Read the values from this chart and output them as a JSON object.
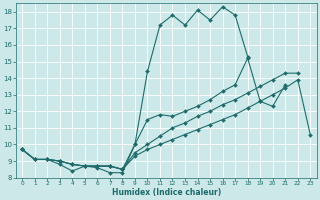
{
  "xlabel": "Humidex (Indice chaleur)",
  "xlim": [
    -0.5,
    23.5
  ],
  "ylim": [
    8,
    18.5
  ],
  "yticks": [
    8,
    9,
    10,
    11,
    12,
    13,
    14,
    15,
    16,
    17,
    18
  ],
  "xticks": [
    0,
    1,
    2,
    3,
    4,
    5,
    6,
    7,
    8,
    9,
    10,
    11,
    12,
    13,
    14,
    15,
    16,
    17,
    18,
    19,
    20,
    21,
    22,
    23
  ],
  "bg_color": "#cce8e8",
  "line_color": "#1f6b6b",
  "grid_color": "#ffffff",
  "lines": [
    {
      "x": [
        0,
        1,
        2,
        3,
        4,
        5,
        6,
        7,
        8,
        9,
        10,
        11,
        12,
        13,
        14,
        15,
        16,
        17,
        18
      ],
      "y": [
        9.7,
        9.1,
        9.1,
        9.0,
        8.8,
        8.7,
        8.7,
        8.7,
        8.5,
        10.0,
        14.4,
        17.2,
        17.8,
        17.2,
        18.1,
        17.5,
        18.3,
        17.8,
        15.3
      ]
    },
    {
      "x": [
        0,
        1,
        2,
        3,
        4,
        5,
        6,
        7,
        8,
        9,
        10,
        11,
        12,
        13,
        14,
        15,
        16,
        17,
        18,
        19,
        20,
        21
      ],
      "y": [
        9.7,
        9.1,
        9.1,
        8.8,
        8.4,
        8.7,
        8.6,
        8.3,
        8.3,
        10.0,
        11.5,
        11.8,
        11.7,
        12.0,
        12.3,
        12.7,
        13.2,
        13.6,
        15.2,
        12.6,
        12.3,
        13.6
      ]
    },
    {
      "x": [
        0,
        1,
        2,
        3,
        4,
        5,
        6,
        7,
        8,
        9,
        10,
        11,
        12,
        13,
        14,
        15,
        16,
        17,
        18,
        19,
        20,
        21,
        22
      ],
      "y": [
        9.7,
        9.1,
        9.1,
        9.0,
        8.8,
        8.7,
        8.7,
        8.7,
        8.5,
        9.5,
        10.0,
        10.5,
        11.0,
        11.3,
        11.7,
        12.0,
        12.4,
        12.7,
        13.1,
        13.5,
        13.9,
        14.3,
        14.3
      ]
    },
    {
      "x": [
        0,
        1,
        2,
        3,
        4,
        5,
        6,
        7,
        8,
        9,
        10,
        11,
        12,
        13,
        14,
        15,
        16,
        17,
        18,
        19,
        20,
        21,
        22,
        23
      ],
      "y": [
        9.7,
        9.1,
        9.1,
        9.0,
        8.8,
        8.7,
        8.7,
        8.7,
        8.5,
        9.3,
        9.7,
        10.0,
        10.3,
        10.6,
        10.9,
        11.2,
        11.5,
        11.8,
        12.2,
        12.6,
        13.0,
        13.4,
        13.9,
        10.6
      ]
    }
  ],
  "marker": "D",
  "markersize": 2.0,
  "linewidth": 0.8
}
